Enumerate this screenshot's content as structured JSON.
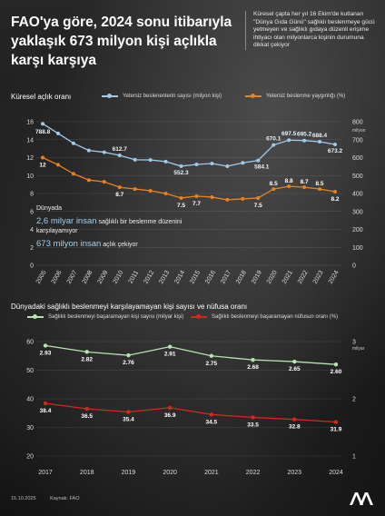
{
  "header": {
    "title": "FAO'ya göre, 2024 sonu itibarıyla yaklaşık 673 milyon kişi açlıkla karşı karşıya",
    "note": "Küresel çapta her yıl 16 Ekim'de kutlanan \"Dünya Gıda Günü\" sağlıklı beslenmeye gücü yetmeyen ve sağlıklı gıdaya düzenli erişime ihtiyacı olan milyonlarca kişinin durumuna dikkat çekiyor"
  },
  "info": {
    "line1": "Dünyada",
    "big1": "2,6 milyar insan",
    "text1": "sağlıklı bir beslenme düzenini karşılayamıyor",
    "big2": "673 milyon insan",
    "text2": "açlık çekiyor"
  },
  "footer": {
    "date": "15.10.2025",
    "source": "Kaynak: FAO"
  },
  "colors": {
    "blue": "#9fcbe8",
    "orange": "#e8821e",
    "red": "#d8261c",
    "green": "#b6e6b0"
  },
  "chart_data": [
    {
      "type": "line",
      "title": "Küresel açlık oranı",
      "x": [
        "2005",
        "2006",
        "2007",
        "2008",
        "2009",
        "2010",
        "2011",
        "2012",
        "2013",
        "2014",
        "2015",
        "2016",
        "2017",
        "2018",
        "2019",
        "2020",
        "2021",
        "2022",
        "2023",
        "2024"
      ],
      "series": [
        {
          "name": "Yetersiz beslenenlerin sayısı (milyon kişi)",
          "axis": "right",
          "values": [
            788.8,
            735,
            680,
            640,
            630,
            612.7,
            588,
            587,
            578,
            552.3,
            562,
            567,
            552,
            571,
            584.1,
            670.1,
            697.5,
            695.2,
            688.4,
            673.2
          ],
          "labels": [
            "788.8",
            "",
            "",
            "",
            "",
            "612.7",
            "",
            "",
            "",
            "552.3",
            "",
            "",
            "",
            "",
            "584.1",
            "670.1",
            "697.5",
            "695.2",
            "688.4",
            "673.2"
          ]
        },
        {
          "name": "Yetersiz beslenme yaygınlığı (%)",
          "axis": "left",
          "values": [
            12,
            11.2,
            10.2,
            9.5,
            9.3,
            8.7,
            8.5,
            8.3,
            8.0,
            7.5,
            7.7,
            7.6,
            7.3,
            7.4,
            7.5,
            8.5,
            8.8,
            8.7,
            8.5,
            8.2
          ],
          "labels": [
            "12",
            "",
            "",
            "",
            "",
            "8.7",
            "",
            "",
            "",
            "7.5",
            "7.7",
            "",
            "",
            "",
            "7.5",
            "8.5",
            "8.8",
            "8.7",
            "8.5",
            "8.2"
          ]
        }
      ],
      "left_axis": {
        "range": [
          0,
          16
        ],
        "ticks": [
          "0",
          "2",
          "4",
          "6",
          "8",
          "10",
          "12",
          "14",
          "16"
        ]
      },
      "right_axis": {
        "range": [
          0,
          800
        ],
        "ticks": [
          "0",
          "100",
          "200",
          "300",
          "400",
          "500",
          "600",
          "700",
          "800"
        ],
        "unit": "milyon"
      }
    },
    {
      "type": "line",
      "title": "Dünyadaki sağlıklı beslenmeyi karşılayamayan kişi sayısı ve nüfusa oranı",
      "x": [
        "2017",
        "2018",
        "2019",
        "2020",
        "2021",
        "2022",
        "2023",
        "2024"
      ],
      "series": [
        {
          "name": "Sağlıklı beslenmeyi başaramayan kişi sayısı (milyar kişi)",
          "axis": "right",
          "values": [
            2.93,
            2.82,
            2.76,
            2.91,
            2.75,
            2.68,
            2.65,
            2.6
          ],
          "labels": [
            "2.93",
            "2.82",
            "2.76",
            "2.91",
            "2.75",
            "2.68",
            "2.65",
            "2.60"
          ]
        },
        {
          "name": "Sağlıklı beslenmeyi başaramayan nüfusun oranı (%)",
          "axis": "left",
          "values": [
            38.4,
            36.5,
            35.4,
            36.9,
            34.5,
            33.5,
            32.8,
            31.9
          ],
          "labels": [
            "38.4",
            "36.5",
            "35.4",
            "36.9",
            "34.5",
            "33.5",
            "32.8",
            "31.9"
          ]
        }
      ],
      "left_axis": {
        "range": [
          20,
          60
        ],
        "ticks": [
          "20",
          "30",
          "40",
          "50",
          "60"
        ]
      },
      "right_axis": {
        "range": [
          1,
          3
        ],
        "ticks": [
          "1",
          "2",
          "3"
        ],
        "unit": "milyar"
      }
    }
  ]
}
